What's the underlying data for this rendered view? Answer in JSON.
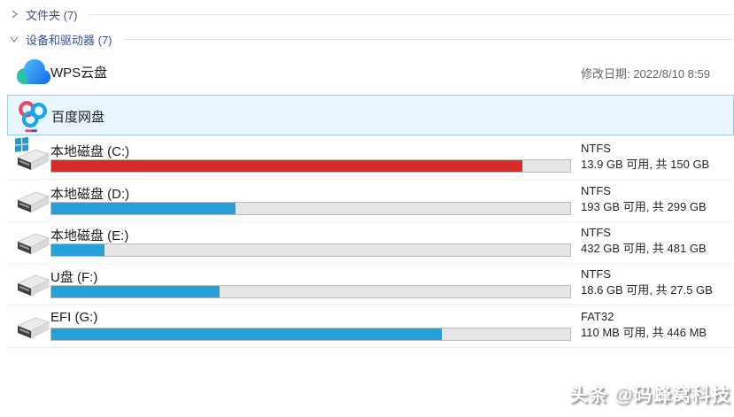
{
  "groups": {
    "folders": {
      "label": "文件夹 (7)",
      "state": "collapsed"
    },
    "devices": {
      "label": "设备和驱动器 (7)",
      "state": "expanded"
    }
  },
  "cloud_items": [
    {
      "name": "WPS云盘",
      "meta_label": "修改日期: 2022/8/10 8:59",
      "selected": false,
      "icon": "wps-cloud-icon"
    },
    {
      "name": "百度网盘",
      "meta_label": "",
      "selected": true,
      "icon": "baidu-netdisk-icon"
    }
  ],
  "drives": [
    {
      "name": "本地磁盘 (C:)",
      "filesystem": "NTFS",
      "capacity": "13.9 GB 可用, 共 150 GB",
      "used_percent": 90.7,
      "bar_color": "#d82c28",
      "system_drive": true
    },
    {
      "name": "本地磁盘 (D:)",
      "filesystem": "NTFS",
      "capacity": "193 GB 可用, 共 299 GB",
      "used_percent": 35.5,
      "bar_color": "#279fd9",
      "system_drive": false
    },
    {
      "name": "本地磁盘 (E:)",
      "filesystem": "NTFS",
      "capacity": "432 GB 可用, 共 481 GB",
      "used_percent": 10.2,
      "bar_color": "#279fd9",
      "system_drive": false
    },
    {
      "name": "U盘 (F:)",
      "filesystem": "NTFS",
      "capacity": "18.6 GB 可用, 共 27.5 GB",
      "used_percent": 32.4,
      "bar_color": "#279fd9",
      "system_drive": false
    },
    {
      "name": "EFI (G:)",
      "filesystem": "FAT32",
      "capacity": "110 MB 可用, 共 446 MB",
      "used_percent": 75.3,
      "bar_color": "#279fd9",
      "system_drive": false
    }
  ],
  "watermark": "头条 @码蜂窝科技",
  "colors": {
    "header_text": "#3b5291",
    "header_line": "#e3e3e3",
    "selected_bg": "#e9f5fd",
    "selected_border": "#9ed0ef",
    "bar_track": "#e6e6e6",
    "bar_border": "#bcbcbc",
    "bar_red": "#d82c28",
    "bar_blue": "#279fd9",
    "row_separator": "#efefef",
    "meta_text": "#666666",
    "drive_text": "#1c1c1c"
  }
}
